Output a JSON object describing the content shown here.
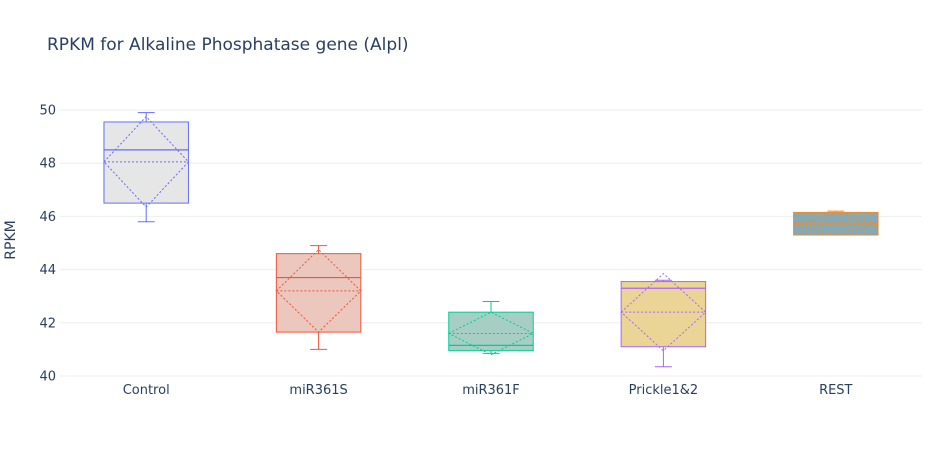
{
  "chart_data": {
    "type": "box",
    "title": "RPKM for Alkaline Phosphatase gene (Alpl)",
    "xlabel": "",
    "ylabel": "RPKM",
    "ylim": [
      40,
      51
    ],
    "yticks": [
      40,
      42,
      44,
      46,
      48,
      50
    ],
    "grid": true,
    "legend": "none",
    "categories": [
      "Control",
      "miR361S",
      "miR361F",
      "Prickle1&2",
      "REST"
    ],
    "series": [
      {
        "category": "Control",
        "min": 45.8,
        "q1": 46.5,
        "median": 48.5,
        "q3": 49.55,
        "max": 49.9,
        "mean": 48.05,
        "sd": 1.7,
        "line_color": "#636efa",
        "fill_color": "#e6e6e6"
      },
      {
        "category": "miR361S",
        "min": 41.0,
        "q1": 41.65,
        "median": 43.7,
        "q3": 44.6,
        "max": 44.9,
        "mean": 43.2,
        "sd": 1.55,
        "line_color": "#ef553b",
        "fill_color": "#ebc7bd"
      },
      {
        "category": "miR361F",
        "min": 40.85,
        "q1": 40.95,
        "median": 41.15,
        "q3": 42.4,
        "max": 42.8,
        "mean": 41.6,
        "sd": 0.8,
        "line_color": "#00cc96",
        "fill_color": "#a7cec3"
      },
      {
        "category": "Prickle1&2",
        "min": 40.35,
        "q1": 41.1,
        "median": 43.3,
        "q3": 43.55,
        "max": 43.6,
        "mean": 42.4,
        "sd": 1.45,
        "line_color": "#ab63fa",
        "fill_color": "#ebd596"
      },
      {
        "category": "REST",
        "min": 45.3,
        "q1": 45.3,
        "median": 45.8,
        "q3": 46.15,
        "max": 46.2,
        "mean": 45.7,
        "sd": 0.42,
        "line_color": "#ef8b2c",
        "fill_color": "#86a9b3"
      }
    ]
  }
}
